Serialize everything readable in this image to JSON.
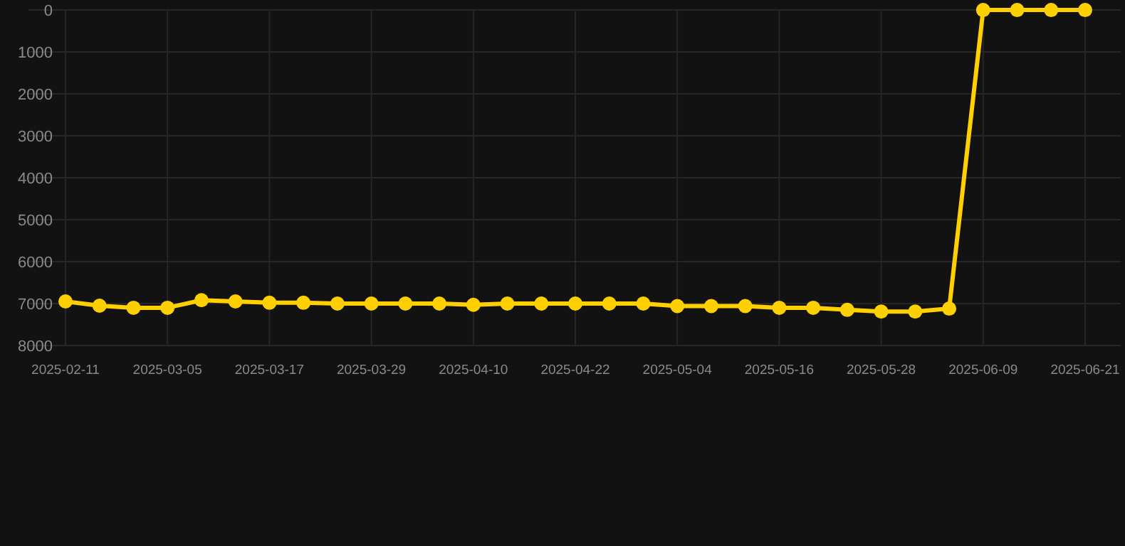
{
  "chart_data": {
    "type": "line",
    "categories": [
      "2025-02-11",
      null,
      null,
      "2025-03-05",
      null,
      null,
      "2025-03-17",
      null,
      null,
      "2025-03-29",
      null,
      null,
      "2025-04-10",
      null,
      null,
      "2025-04-22",
      null,
      null,
      "2025-05-04",
      null,
      null,
      "2025-05-16",
      null,
      null,
      "2025-05-28",
      null,
      null,
      "2025-06-09",
      null,
      null,
      "2025-06-21"
    ],
    "series": [
      {
        "color": "#ffd000",
        "values": [
          6950,
          7050,
          7100,
          7100,
          6920,
          6950,
          6980,
          6980,
          7000,
          7000,
          7000,
          7000,
          7030,
          7000,
          7000,
          7000,
          7000,
          7000,
          7060,
          7060,
          7060,
          7100,
          7100,
          7150,
          7190,
          7190,
          7120,
          1,
          1,
          1,
          1
        ]
      }
    ],
    "ylim": [
      8000,
      0
    ],
    "yticks": [
      0,
      1000,
      2000,
      3000,
      4000,
      5000,
      6000,
      7000,
      8000
    ],
    "grid": true,
    "marker": "circle",
    "line_style": "solid",
    "legend": false
  }
}
